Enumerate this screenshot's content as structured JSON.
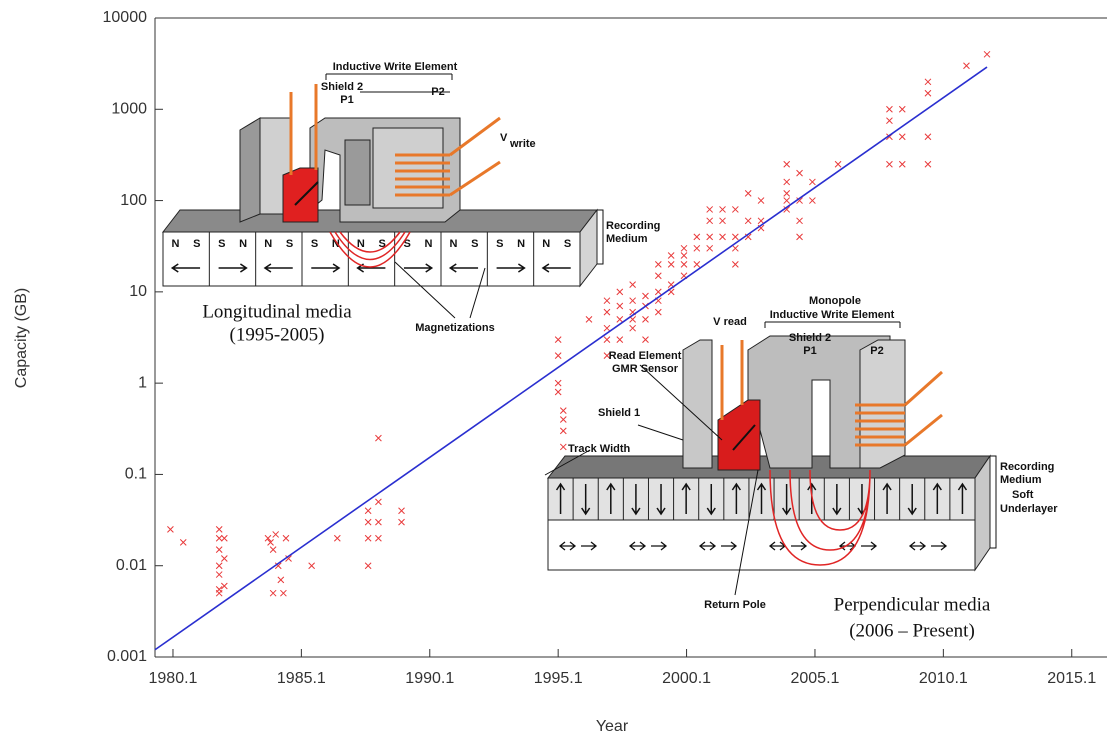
{
  "chart_data": {
    "type": "scatter",
    "xlabel": "Year",
    "ylabel": "Capacity (GB)",
    "xlim": [
      1979.4,
      2016.2
    ],
    "ylim": [
      0.001,
      10000
    ],
    "log_y": true,
    "xticks": [
      1980.1,
      1985.1,
      1990.1,
      1995.1,
      2000.1,
      2005.1,
      2010.1,
      2015.1
    ],
    "yticks": [
      0.001,
      0.01,
      0.1,
      1,
      10,
      100,
      1000,
      10000
    ],
    "series": [
      {
        "type": "scatter",
        "color": "#e8393a",
        "x": [
          1980.0,
          1980.5,
          1981.9,
          1981.9,
          1981.9,
          1981.9,
          1981.9,
          1981.9,
          1981.9,
          1982.1,
          1982.1,
          1982.1,
          1983.8,
          1984.0,
          1984.2,
          1984.4,
          1984.6,
          1983.9,
          1984.1,
          1984.5,
          1984.3,
          1984.0,
          1985.5,
          1986.5,
          1987.7,
          1987.7,
          1987.7,
          1987.7,
          1988.1,
          1988.1,
          1988.1,
          1988.1,
          1989.0,
          1989.0,
          1995.1,
          1995.1,
          1995.1,
          1995.1,
          1995.3,
          1995.3,
          1995.3,
          1995.3,
          1996.3,
          1997.0,
          1997.0,
          1997.0,
          1997.0,
          1997.0,
          1997.5,
          1997.5,
          1997.5,
          1997.5,
          1998.0,
          1998.0,
          1998.0,
          1998.0,
          1998.0,
          1998.5,
          1998.5,
          1998.5,
          1998.5,
          1999.0,
          1999.0,
          1999.0,
          1999.0,
          1999.0,
          1999.5,
          1999.5,
          1999.5,
          1999.5,
          2000.0,
          2000.0,
          2000.0,
          2000.0,
          2000.5,
          2000.5,
          2000.5,
          2001.0,
          2001.0,
          2001.0,
          2001.0,
          2001.5,
          2001.5,
          2001.5,
          2002.0,
          2002.0,
          2002.0,
          2002.0,
          2002.5,
          2002.5,
          2002.5,
          2003.0,
          2003.0,
          2003.0,
          2004.0,
          2004.0,
          2004.0,
          2004.0,
          2004.0,
          2004.5,
          2004.5,
          2004.5,
          2004.5,
          2005.0,
          2005.0,
          2006.0,
          2008.0,
          2008.0,
          2008.0,
          2008.0,
          2008.5,
          2008.5,
          2008.5,
          2009.5,
          2009.5,
          2009.5,
          2009.5,
          2011.0,
          2011.8
        ],
        "values": [
          0.025,
          0.018,
          0.005,
          0.0055,
          0.008,
          0.01,
          0.015,
          0.02,
          0.025,
          0.006,
          0.012,
          0.02,
          0.02,
          0.015,
          0.01,
          0.005,
          0.012,
          0.018,
          0.022,
          0.02,
          0.007,
          0.005,
          0.01,
          0.02,
          0.02,
          0.03,
          0.04,
          0.01,
          0.25,
          0.05,
          0.03,
          0.02,
          0.03,
          0.04,
          2,
          3,
          1,
          0.8,
          0.5,
          0.4,
          0.3,
          0.2,
          5,
          2,
          3,
          4,
          6,
          8,
          3,
          5,
          7,
          10,
          4,
          5,
          6,
          8,
          12,
          3,
          5,
          7,
          9,
          6,
          8,
          10,
          15,
          20,
          10,
          12,
          20,
          25,
          15,
          20,
          25,
          30,
          20,
          30,
          40,
          30,
          40,
          60,
          80,
          40,
          60,
          80,
          20,
          30,
          40,
          80,
          40,
          60,
          120,
          50,
          60,
          100,
          80,
          100,
          120,
          160,
          250,
          40,
          60,
          100,
          200,
          100,
          160,
          250,
          250,
          500,
          750,
          1000,
          250,
          500,
          1000,
          250,
          500,
          1500,
          2000,
          3000,
          4000
        ]
      },
      {
        "type": "line",
        "color": "#2a2fd0",
        "x": [
          1979.4,
          2011.8
        ],
        "values": [
          0.0012,
          2900
        ]
      }
    ],
    "insets": [
      {
        "title": "Longitudinal media",
        "subtitle": "(1995-2005)",
        "write_element": "Inductive Write Element",
        "shield": "Shield 2",
        "p1": "P1",
        "p2": "P2",
        "v": "V",
        "v_sub": "write",
        "medium": [
          "Recording",
          "Medium"
        ],
        "magnetizations": "Magnetizations",
        "poles": [
          "N",
          "S",
          "S",
          "N",
          "N",
          "S",
          "S",
          "N",
          "N",
          "S",
          "S",
          "N",
          "N",
          "S",
          "S",
          "N",
          "N",
          "S"
        ]
      },
      {
        "title": "Perpendicular media",
        "subtitle": "(2006 – Present)",
        "v_read": "V read",
        "monopole": "Monopole",
        "write_element": "Inductive Write Element",
        "shield2": "Shield 2",
        "p1": "P1",
        "p2": "P2",
        "read_element": [
          "Read Element",
          "GMR Sensor"
        ],
        "shield1": "Shield 1",
        "track_width": "Track Width",
        "medium": [
          "Recording",
          "Medium"
        ],
        "underlayer": [
          "Soft",
          "Underlayer"
        ],
        "return_pole": "Return Pole"
      }
    ]
  }
}
